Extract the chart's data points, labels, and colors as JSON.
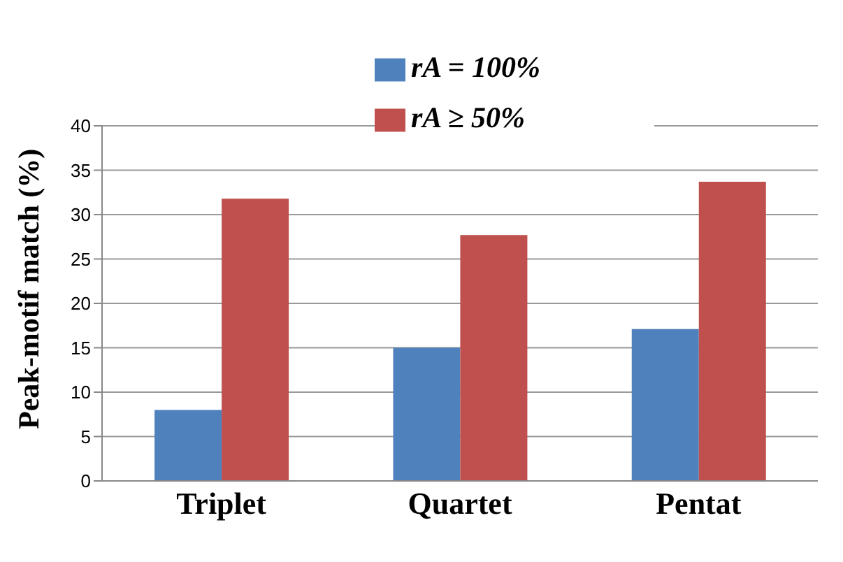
{
  "chart_data": {
    "type": "bar",
    "ylabel": "Peak-motif match (%)",
    "categories": [
      "Triplet",
      "Quartet",
      "Pentat"
    ],
    "series": [
      {
        "name": "rA = 100%",
        "color": "#4f81bd",
        "values": [
          8,
          15,
          17.1
        ]
      },
      {
        "name": "rA ≥ 50%",
        "color": "#c0504d",
        "values": [
          31.8,
          27.7,
          33.7
        ]
      }
    ],
    "ylim": [
      0,
      40
    ],
    "yticks": [
      0,
      5,
      10,
      15,
      20,
      25,
      30,
      35,
      40
    ],
    "grid": "y",
    "legend": "top"
  }
}
